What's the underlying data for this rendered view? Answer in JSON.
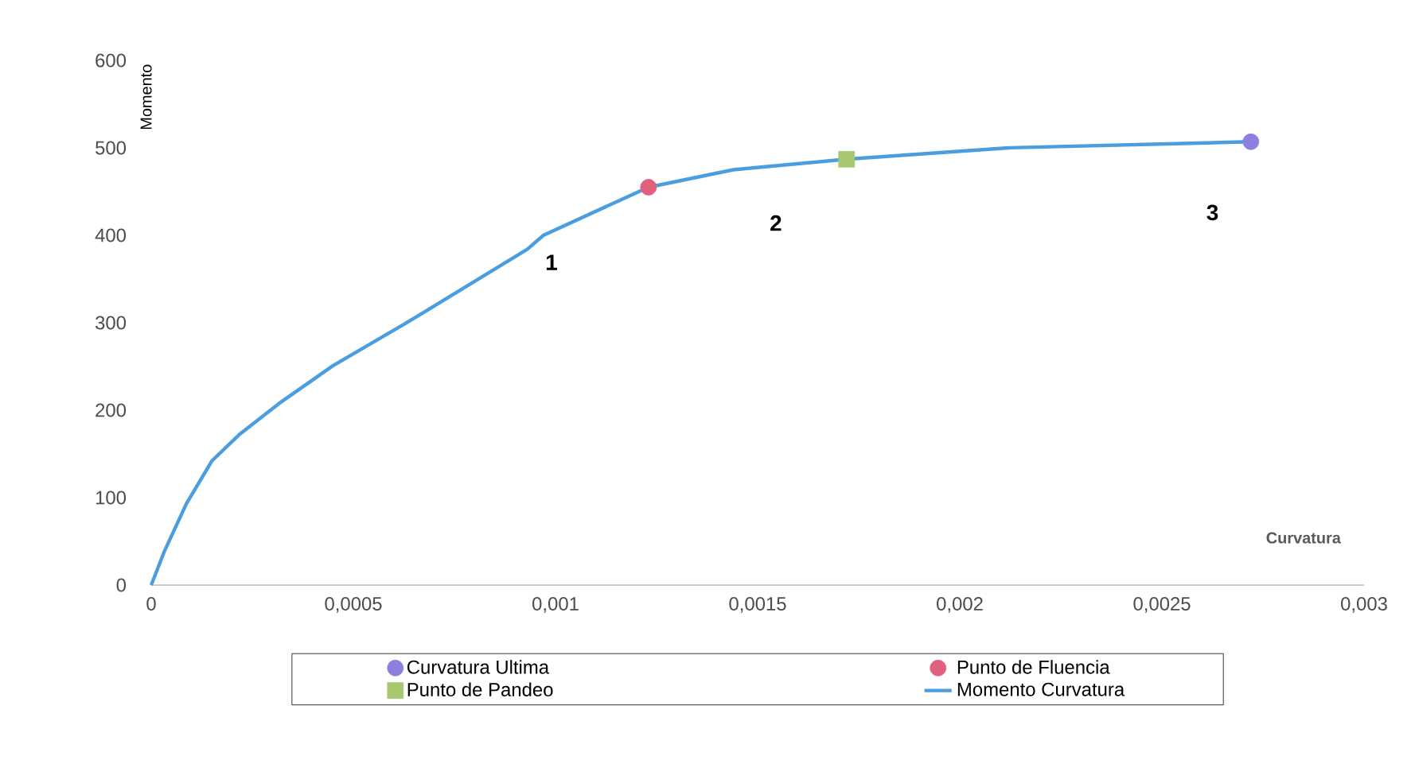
{
  "chart_data": {
    "type": "line",
    "xlabel": "Curvatura",
    "ylabel": "Momento",
    "xlim": [
      0,
      0.003
    ],
    "ylim": [
      0,
      600
    ],
    "xticks": [
      {
        "value": 0,
        "label": "0"
      },
      {
        "value": 0.0005,
        "label": "0,0005"
      },
      {
        "value": 0.001,
        "label": "0,001"
      },
      {
        "value": 0.0015,
        "label": "0,0015"
      },
      {
        "value": 0.002,
        "label": "0,002"
      },
      {
        "value": 0.0025,
        "label": "0,0025"
      },
      {
        "value": 0.003,
        "label": "0,003"
      }
    ],
    "yticks": [
      0,
      100,
      200,
      300,
      400,
      500,
      600
    ],
    "grid": false,
    "legend": "bottom",
    "series": [
      {
        "name": "Curvatura Ultima",
        "type": "scatter",
        "marker": "circle",
        "color": "#8b7fe0",
        "x": [
          0.00272
        ],
        "values": [
          507
        ]
      },
      {
        "name": "Punto de Fluencia",
        "type": "scatter",
        "marker": "circle",
        "color": "#e0607e",
        "x": [
          0.00123
        ],
        "values": [
          455
        ]
      },
      {
        "name": "Punto de Pandeo",
        "type": "scatter",
        "marker": "square",
        "color": "#a8c870",
        "x": [
          0.00172
        ],
        "values": [
          487
        ]
      },
      {
        "name": "Momento Curvatura",
        "marker": "none",
        "line_style": "solid",
        "color": "#4a9ee0",
        "x": [
          0,
          3.2e-05,
          8.7e-05,
          0.00015,
          0.00022,
          0.00032,
          0.00045,
          0.00065,
          0.00093,
          0.00097,
          0.00123,
          0.00144,
          0.00172,
          0.00212,
          0.00272
        ],
        "values": [
          0,
          38,
          93,
          142,
          173,
          209,
          251,
          305,
          384,
          400,
          455,
          475,
          487,
          500,
          507
        ]
      }
    ],
    "annotations": [
      "1",
      "2",
      "3"
    ]
  }
}
